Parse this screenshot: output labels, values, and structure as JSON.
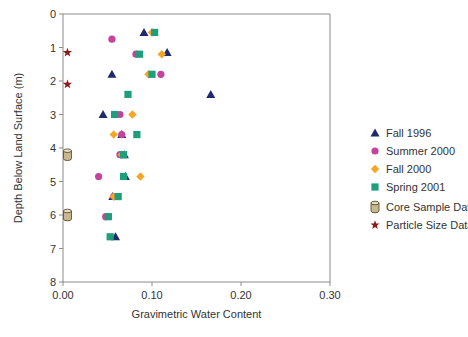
{
  "chart_data": {
    "type": "scatter",
    "x_label": "Gravimetric Water Content",
    "y_label": "Depth Below Land Surface (m)",
    "xlim": [
      0,
      0.3
    ],
    "ylim": [
      8,
      0
    ],
    "xticks": [
      {
        "value": 0,
        "label": "0.00"
      },
      {
        "value": 0.1,
        "label": "0.10"
      },
      {
        "value": 0.2,
        "label": "0.20"
      },
      {
        "value": 0.3,
        "label": "0.30"
      }
    ],
    "yticks": [
      0,
      1,
      2,
      3,
      4,
      5,
      6,
      7,
      8
    ],
    "legend": "right",
    "series": [
      {
        "name": "Fall 1996",
        "color": "#1f2a6e",
        "marker": "triangle",
        "x": [
          0.091,
          0.117,
          0.055,
          0.166,
          0.045,
          0.066,
          0.069,
          0.07,
          0.056,
          0.059
        ],
        "values": [
          0.55,
          1.15,
          1.8,
          2.4,
          3.0,
          3.6,
          4.2,
          4.85,
          5.45,
          6.65
        ]
      },
      {
        "name": "Summer 2000",
        "color": "#c4449c",
        "marker": "circle",
        "x": [
          0.055,
          0.082,
          0.11,
          0.064,
          0.066,
          0.064,
          0.04,
          0.057,
          0.048
        ],
        "values": [
          0.75,
          1.2,
          1.8,
          3.0,
          3.6,
          4.2,
          4.85,
          5.45,
          6.05
        ]
      },
      {
        "name": "Fall 2000",
        "color": "#f5a623",
        "marker": "diamond",
        "x": [
          0.1,
          0.111,
          0.096,
          0.078,
          0.057,
          0.066,
          0.087,
          0.057
        ],
        "values": [
          0.55,
          1.2,
          1.8,
          3.0,
          3.6,
          4.2,
          4.85,
          5.45
        ]
      },
      {
        "name": "Spring 2001",
        "color": "#1e9e7a",
        "marker": "square",
        "x": [
          0.103,
          0.086,
          0.1,
          0.073,
          0.058,
          0.083,
          0.068,
          0.068,
          0.062,
          0.051,
          0.053
        ],
        "values": [
          0.55,
          1.2,
          1.8,
          2.4,
          3.0,
          3.6,
          4.2,
          4.85,
          5.45,
          6.05,
          6.65
        ]
      },
      {
        "name": "Core Sample Data",
        "color": "#c9b88f",
        "marker": "cylinder",
        "x": [
          0.005,
          0.005
        ],
        "values": [
          4.2,
          6.0
        ]
      },
      {
        "name": "Particle Size Data",
        "color": "#8b1a1a",
        "marker": "star",
        "x": [
          0.005,
          0.005
        ],
        "values": [
          1.15,
          2.1
        ]
      }
    ]
  }
}
